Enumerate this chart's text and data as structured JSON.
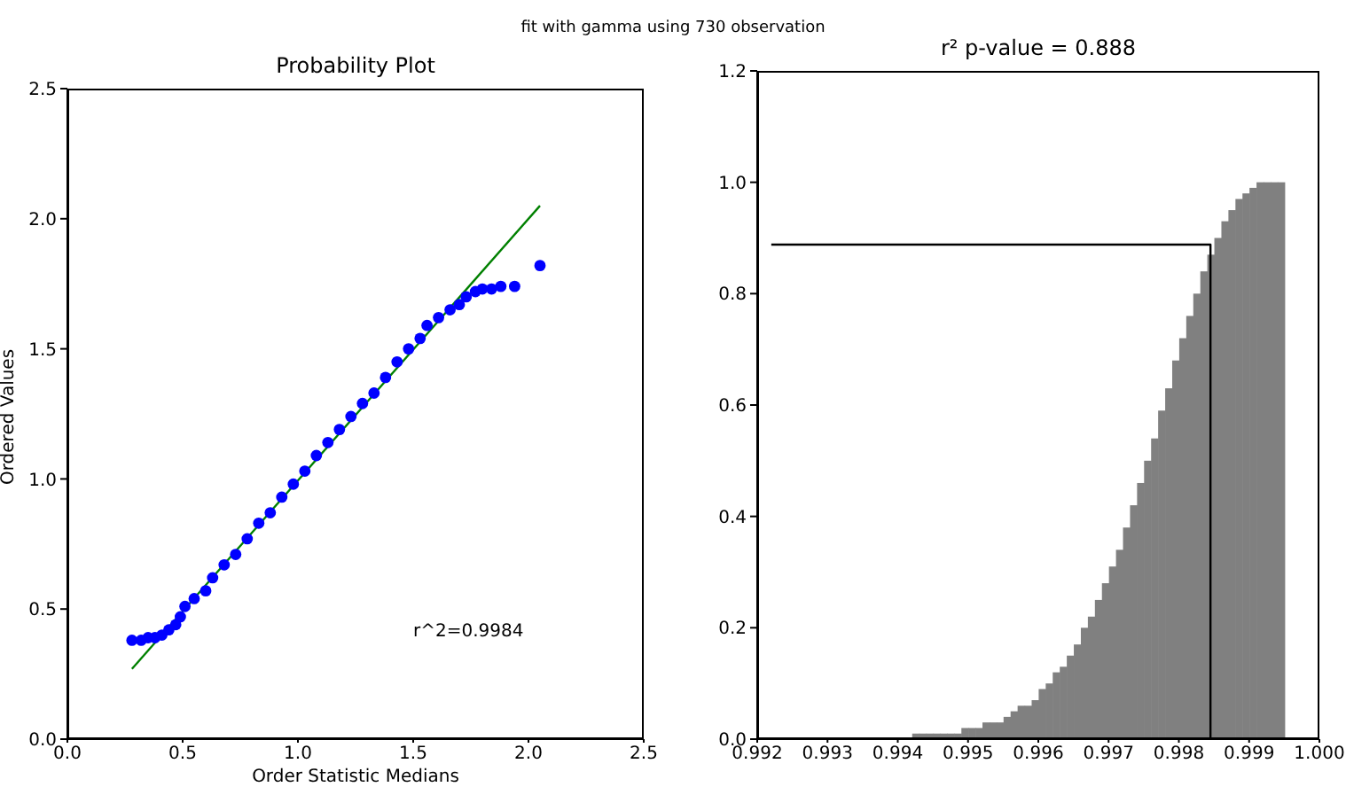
{
  "chart_data": [
    {
      "type": "scatter",
      "title": "Probability Plot",
      "xlabel": "Order Statistic Medians",
      "ylabel": "Ordered Values",
      "annotations": [
        "fit with gamma using 730 observation",
        "r^2=0.9984"
      ],
      "xlim": [
        0,
        2.5
      ],
      "ylim": [
        0,
        2.5
      ],
      "xticks": [
        {
          "value": 0,
          "label": "0.0"
        },
        0.5,
        {
          "value": 1,
          "label": "1.0"
        },
        1.5,
        {
          "value": 2,
          "label": "2.0"
        },
        2.5
      ],
      "yticks": [
        {
          "value": 0,
          "label": "0.0"
        },
        0.5,
        {
          "value": 1,
          "label": "1.0"
        },
        1.5,
        {
          "value": 2,
          "label": "2.0"
        },
        2.5
      ],
      "series": [
        {
          "type": "scatter",
          "color": "#0000ff",
          "marker": "circle",
          "x": [
            0.28,
            0.32,
            0.35,
            0.38,
            0.41,
            0.44,
            0.47,
            0.49,
            0.51,
            0.55,
            0.6,
            0.63,
            0.68,
            0.73,
            0.78,
            0.83,
            0.88,
            0.93,
            0.98,
            1.03,
            1.08,
            1.13,
            1.18,
            1.23,
            1.28,
            1.33,
            1.38,
            1.43,
            1.48,
            1.53,
            1.56,
            1.61,
            1.66,
            1.7,
            1.73,
            1.77,
            1.8,
            1.84,
            1.88,
            1.94,
            2.05
          ],
          "values": [
            0.38,
            0.38,
            0.39,
            0.39,
            0.4,
            0.42,
            0.44,
            0.47,
            0.51,
            0.54,
            0.57,
            0.62,
            0.67,
            0.71,
            0.77,
            0.83,
            0.87,
            0.93,
            0.98,
            1.03,
            1.09,
            1.14,
            1.19,
            1.24,
            1.29,
            1.33,
            1.39,
            1.45,
            1.5,
            1.54,
            1.59,
            1.62,
            1.65,
            1.67,
            1.7,
            1.72,
            1.73,
            1.73,
            1.74,
            1.74,
            1.82
          ]
        },
        {
          "type": "line",
          "color": "#008000",
          "x": [
            0.28,
            2.05
          ],
          "values": [
            0.27,
            2.05
          ]
        }
      ]
    },
    {
      "type": "histogram",
      "title": "r² p-value = 0.888",
      "color": "#808080",
      "bins": [
        0.9922,
        0.9923,
        0.9924,
        0.9925,
        0.9926,
        0.9927,
        0.9928,
        0.9929,
        0.993,
        0.9931,
        0.9932,
        0.9933,
        0.9934,
        0.9935,
        0.9936,
        0.9937,
        0.9938,
        0.9939,
        0.994,
        0.9941,
        0.9942,
        0.9943,
        0.9944,
        0.9945,
        0.9946,
        0.9947,
        0.9948,
        0.9949,
        0.995,
        0.9951,
        0.9952,
        0.9953,
        0.9954,
        0.9955,
        0.9956,
        0.9957,
        0.9958,
        0.9959,
        0.996,
        0.9961,
        0.9962,
        0.9963,
        0.9964,
        0.9965,
        0.9966,
        0.9967,
        0.9968,
        0.9969,
        0.997,
        0.9971,
        0.9972,
        0.9973,
        0.9974,
        0.9975,
        0.9976,
        0.9977,
        0.9978,
        0.9979,
        0.998,
        0.9981,
        0.9982,
        0.9983,
        0.9984,
        0.9985,
        0.9986,
        0.9987,
        0.9988,
        0.9989,
        0.999,
        0.9991,
        0.9992,
        0.9993,
        0.9994,
        0.9995
      ],
      "values": [
        0,
        0,
        0,
        0,
        0,
        0,
        0,
        0,
        0,
        0,
        0,
        0,
        0,
        0,
        0,
        0,
        0,
        0,
        0,
        0,
        0.01,
        0.01,
        0.01,
        0.01,
        0.01,
        0.01,
        0.01,
        0.02,
        0.02,
        0.02,
        0.03,
        0.03,
        0.03,
        0.04,
        0.05,
        0.06,
        0.06,
        0.07,
        0.09,
        0.1,
        0.12,
        0.13,
        0.15,
        0.17,
        0.2,
        0.22,
        0.25,
        0.28,
        0.31,
        0.34,
        0.38,
        0.42,
        0.46,
        0.5,
        0.54,
        0.59,
        0.63,
        0.68,
        0.72,
        0.76,
        0.8,
        0.84,
        0.87,
        0.9,
        0.93,
        0.95,
        0.97,
        0.98,
        0.99,
        1,
        1,
        1,
        1
      ],
      "xlim": [
        0.992,
        1
      ],
      "ylim": [
        0,
        1.2
      ],
      "xticks": [
        0.992,
        0.993,
        0.994,
        0.995,
        0.996,
        0.997,
        0.998,
        0.999,
        {
          "value": 1,
          "label": "1.000"
        }
      ],
      "yticks": [
        {
          "value": 0,
          "label": "0.0"
        },
        0.2,
        0.4,
        0.6,
        0.8,
        {
          "value": 1,
          "label": "1.0"
        },
        1.2
      ],
      "series": [
        {
          "type": "line",
          "color": "#000000",
          "x": [
            0.9922,
            0.99845,
            0.99845
          ],
          "values": [
            0.888,
            0.888,
            0
          ]
        }
      ]
    }
  ]
}
